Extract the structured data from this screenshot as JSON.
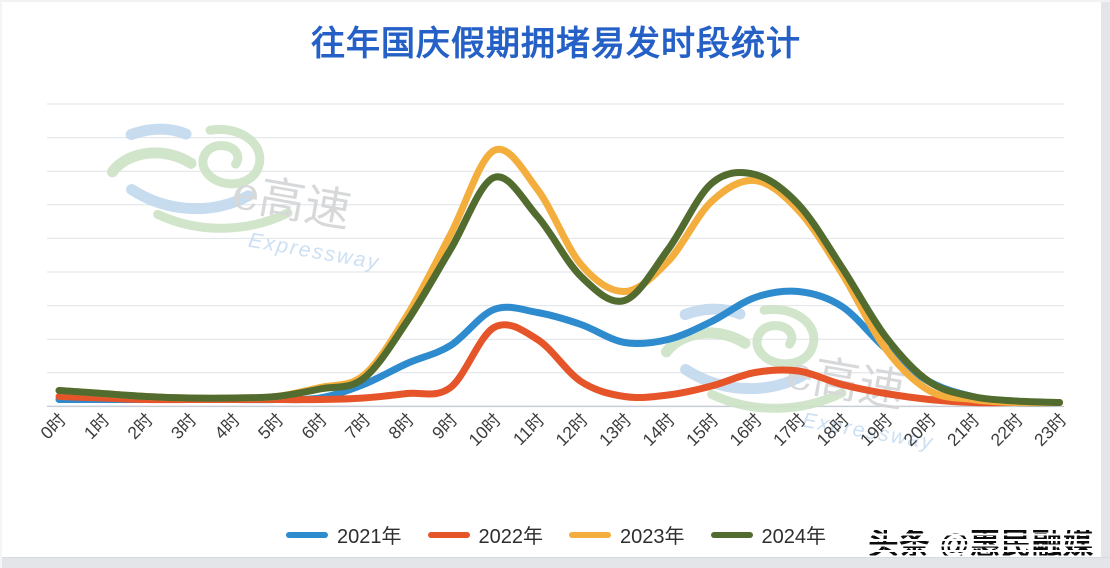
{
  "title": {
    "text": "往年国庆假期拥堵易发时段统计",
    "color": "#2560C6"
  },
  "watermark": {
    "brand": "e高速",
    "subtitle": "Expressway",
    "count": 2
  },
  "attribution": {
    "text": "头条 @惠民融媒"
  },
  "chart_data": {
    "type": "line",
    "title": "往年国庆假期拥堵易发时段统计",
    "xlabel": "",
    "ylabel": "",
    "categories": [
      "0时",
      "1时",
      "2时",
      "3时",
      "4时",
      "5时",
      "6时",
      "7时",
      "8时",
      "9时",
      "10时",
      "11时",
      "12时",
      "13时",
      "14时",
      "15时",
      "16时",
      "17时",
      "18时",
      "19时",
      "20时",
      "21时",
      "22时",
      "23时"
    ],
    "series": [
      {
        "name": "2021年",
        "color": "#2E8BCE",
        "values": [
          2,
          2,
          2,
          2,
          2,
          2,
          2.5,
          7,
          14,
          20,
          32,
          31,
          27,
          21,
          22,
          28,
          36,
          38,
          33,
          19,
          8,
          3,
          1,
          1
        ]
      },
      {
        "name": "2022年",
        "color": "#E65429",
        "values": [
          3,
          2.5,
          2,
          2,
          2,
          2,
          2,
          2.5,
          4,
          6,
          26,
          22,
          8,
          3,
          3.5,
          6.5,
          11,
          11.5,
          7,
          4,
          2,
          1,
          1,
          1
        ]
      },
      {
        "name": "2023年",
        "color": "#F3AE3D",
        "values": [
          5,
          4,
          3,
          2.5,
          2.5,
          3,
          6,
          10,
          30,
          57,
          85,
          72,
          47,
          38,
          48,
          68,
          75,
          65,
          44,
          19,
          5,
          2,
          1,
          1
        ]
      },
      {
        "name": "2024年",
        "color": "#526C30",
        "values": [
          5,
          4,
          3,
          2.5,
          2.5,
          3,
          5.5,
          9,
          28,
          52,
          76,
          63,
          43,
          35,
          52,
          74,
          77,
          67,
          46,
          23,
          8,
          3,
          1.5,
          1
        ]
      }
    ],
    "ylim": [
      0,
      100
    ],
    "yaxis_labels_visible": false,
    "grid": "horizontal",
    "gridline_count": 10,
    "legend_position": "bottom",
    "note": "values are relative congestion index estimated from pixel heights (no y-axis labels shown)"
  },
  "style_colors": {
    "gridline": "#dfe2e7",
    "baseline": "#c9ced5",
    "x_label": "#3c3c3c",
    "watermark_green": "#cde3c6",
    "watermark_blue": "#c3d9ee",
    "watermark_gray": "#d3d4d6",
    "watermark_subtitle_blue": "#c7dcf2"
  }
}
